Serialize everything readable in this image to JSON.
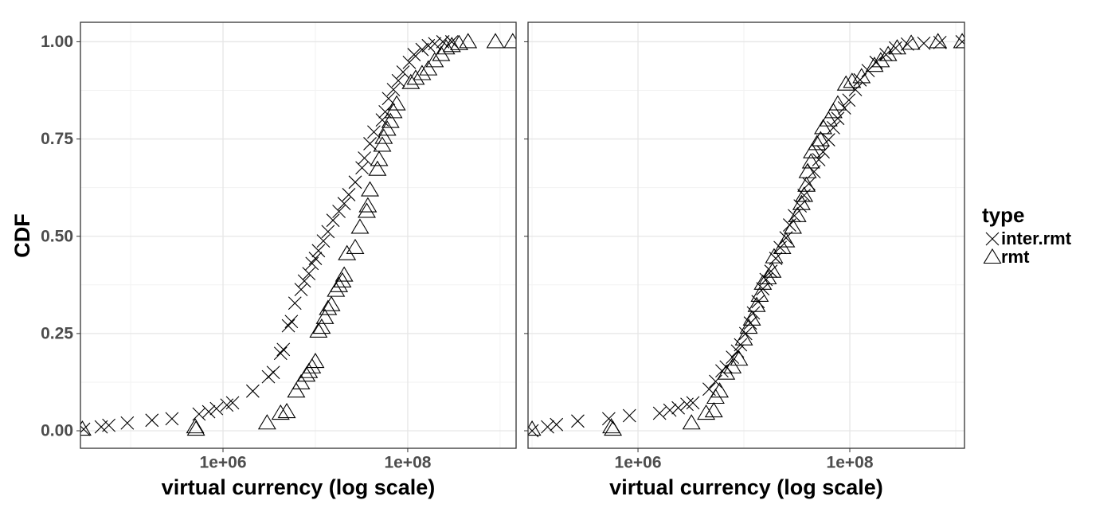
{
  "chart_data": [
    {
      "type": "scatter",
      "ylabel": "CDF",
      "xlabel": "virtual currency (log scale)",
      "xlog": true,
      "grid": true,
      "legend_title": "type",
      "xlim": [
        28600,
        1490000000
      ],
      "ylim": [
        -0.045,
        1.05
      ],
      "xticks": [
        {
          "value": 1000000,
          "label": "1e+06"
        },
        {
          "value": 100000000,
          "label": "1e+08"
        }
      ],
      "minor_xticks": [
        100000,
        10000000,
        1000000000
      ],
      "yticks": [
        {
          "value": 0,
          "label": "0.00"
        },
        {
          "value": 0.25,
          "label": "0.25"
        },
        {
          "value": 0.5,
          "label": "0.50"
        },
        {
          "value": 0.75,
          "label": "0.75"
        },
        {
          "value": 1,
          "label": "1.00"
        }
      ],
      "minor_yticks": [
        0.125,
        0.375,
        0.625,
        0.875
      ],
      "series": [
        {
          "name": "inter.rmt",
          "marker": "x",
          "color": "#000000",
          "x": [
            31000.0,
            48000.0,
            58000.0,
            92000.0,
            170000.0,
            280000.0,
            550000.0,
            700000.0,
            850000.0,
            1100000.0,
            1270000.0,
            2100000.0,
            3100000.0,
            3500000.0,
            4200000.0,
            4500000.0,
            5100000.0,
            5500000.0,
            6000000.0,
            7000000.0,
            7600000.0,
            8500000.0,
            9200000.0,
            10000000.0,
            10800000.0,
            12200000.0,
            13700000.0,
            15500000.0,
            18000000.0,
            20500000.0,
            23000000.0,
            27000000.0,
            32000000.0,
            34000000.0,
            39000000.0,
            43000000.0,
            53000000.0,
            57000000.0,
            62000000.0,
            70000000.0,
            79000000.0,
            89000000.0,
            104000000.0,
            117000000.0,
            143000000.0,
            167000000.0,
            196000000.0,
            240000000.0,
            300000000.0
          ],
          "values": [
            0.004,
            0.01,
            0.014,
            0.02,
            0.027,
            0.031,
            0.043,
            0.049,
            0.057,
            0.066,
            0.072,
            0.102,
            0.139,
            0.15,
            0.199,
            0.209,
            0.27,
            0.281,
            0.328,
            0.363,
            0.385,
            0.404,
            0.43,
            0.443,
            0.463,
            0.488,
            0.512,
            0.541,
            0.564,
            0.584,
            0.607,
            0.639,
            0.676,
            0.701,
            0.738,
            0.768,
            0.799,
            0.82,
            0.854,
            0.877,
            0.9,
            0.922,
            0.947,
            0.967,
            0.98,
            0.99,
            0.995,
            1.0,
            1.0
          ]
        },
        {
          "name": "rmt",
          "marker": "triangle",
          "color": "#000000",
          "x": [
            30000.0,
            500000.0,
            510000.0,
            3000000.0,
            4200000.0,
            4900000.0,
            6200000.0,
            7000000.0,
            8000000.0,
            8500000.0,
            9200000.0,
            10000000.0,
            10800000.0,
            11700000.0,
            12700000.0,
            13700000.0,
            14900000.0,
            16700000.0,
            18000000.0,
            19600000.0,
            20500000.0,
            22000000.0,
            27000000.0,
            30400000.0,
            36000000.0,
            37000000.0,
            39000000.0,
            47000000.0,
            49000000.0,
            53000000.0,
            55000000.0,
            60000000.0,
            65000000.0,
            70000000.0,
            76000000.0,
            108000000.0,
            122000000.0,
            143000000.0,
            167000000.0,
            196000000.0,
            230000000.0,
            260000000.0,
            300000000.0,
            360000000.0,
            450000000.0,
            890000000.0,
            1370000000.0
          ],
          "values": [
            0.004,
            0.01,
            0.004,
            0.02,
            0.045,
            0.049,
            0.102,
            0.123,
            0.143,
            0.152,
            0.164,
            0.178,
            0.256,
            0.266,
            0.291,
            0.314,
            0.324,
            0.361,
            0.373,
            0.385,
            0.4,
            0.455,
            0.471,
            0.523,
            0.564,
            0.578,
            0.619,
            0.672,
            0.697,
            0.734,
            0.754,
            0.775,
            0.795,
            0.82,
            0.84,
            0.895,
            0.906,
            0.918,
            0.93,
            0.951,
            0.967,
            0.984,
            0.99,
            0.995,
            1.0,
            1.0,
            1.0
          ]
        }
      ]
    },
    {
      "type": "scatter",
      "xlabel": "virtual currency (log scale)",
      "xlog": true,
      "grid": true,
      "xlim": [
        91600,
        1210000000
      ],
      "ylim": [
        -0.045,
        1.05
      ],
      "xticks": [
        {
          "value": 1000000,
          "label": "1e+06"
        },
        {
          "value": 100000000,
          "label": "1e+08"
        }
      ],
      "minor_xticks": [
        100000,
        10000000,
        1000000000
      ],
      "yticks": [
        0,
        0.25,
        0.5,
        0.75,
        1
      ],
      "minor_yticks": [
        0.125,
        0.375,
        0.625,
        0.875
      ],
      "series": [
        {
          "name": "inter.rmt",
          "marker": "x",
          "color": "#000000",
          "x": [
            100000.0,
            140000.0,
            170000.0,
            270000.0,
            530000.0,
            830000.0,
            1600000.0,
            2000000.0,
            2400000.0,
            2900000.0,
            3300000.0,
            4700000.0,
            5400000.0,
            6200000.0,
            6800000.0,
            7800000.0,
            8700000.0,
            9300000.0,
            10400000.0,
            11500000.0,
            12300000.0,
            13600000.0,
            15100000.0,
            16200000.0,
            18000000.0,
            20000000.0,
            22000000.0,
            25000000.0,
            27000000.0,
            30000000.0,
            34000000.0,
            37000000.0,
            41000000.0,
            46000000.0,
            51000000.0,
            56000000.0,
            63000000.0,
            70000000.0,
            77000000.0,
            89000000.0,
            98000000.0,
            113000000.0,
            125000000.0,
            149000000.0,
            177000000.0,
            220000000.0,
            270000000.0,
            350000000.0,
            500000000.0,
            710000000.0,
            1150000000.0
          ],
          "values": [
            0,
            0.01,
            0.016,
            0.025,
            0.031,
            0.039,
            0.045,
            0.053,
            0.059,
            0.068,
            0.072,
            0.107,
            0.127,
            0.154,
            0.164,
            0.189,
            0.205,
            0.221,
            0.25,
            0.277,
            0.303,
            0.332,
            0.365,
            0.389,
            0.41,
            0.443,
            0.471,
            0.496,
            0.529,
            0.553,
            0.578,
            0.605,
            0.635,
            0.666,
            0.697,
            0.717,
            0.748,
            0.779,
            0.803,
            0.83,
            0.85,
            0.877,
            0.902,
            0.926,
            0.947,
            0.967,
            0.984,
            0.994,
            0.996,
            0.998,
            1.0
          ]
        },
        {
          "name": "rmt",
          "marker": "triangle",
          "color": "#000000",
          "x": [
            100000.0,
            560000.0,
            580000.0,
            3200000.0,
            4400000.0,
            5200000.0,
            5400000.0,
            5900000.0,
            6800000.0,
            7800000.0,
            9000000.0,
            10000000.0,
            11100000.0,
            11900000.0,
            13200000.0,
            14100000.0,
            15100000.0,
            16800000.0,
            18600000.0,
            19300000.0,
            23000000.0,
            25000000.0,
            29000000.0,
            32000000.0,
            35000000.0,
            37000000.0,
            39000000.0,
            40000000.0,
            43000000.0,
            44000000.0,
            49000000.0,
            53000000.0,
            56000000.0,
            63000000.0,
            70000000.0,
            77000000.0,
            92000000.0,
            105000000.0,
            129000000.0,
            171000000.0,
            196000000.0,
            230000000.0,
            280000000.0,
            380000000.0,
            680000000.0,
            1150000000.0
          ],
          "values": [
            0.004,
            0.01,
            0.004,
            0.02,
            0.045,
            0.051,
            0.086,
            0.102,
            0.148,
            0.164,
            0.184,
            0.236,
            0.266,
            0.287,
            0.322,
            0.348,
            0.379,
            0.393,
            0.41,
            0.447,
            0.471,
            0.488,
            0.523,
            0.553,
            0.584,
            0.605,
            0.631,
            0.666,
            0.691,
            0.717,
            0.738,
            0.748,
            0.779,
            0.799,
            0.82,
            0.84,
            0.891,
            0.898,
            0.91,
            0.939,
            0.951,
            0.967,
            0.984,
            0.996,
            1.0,
            1.0
          ]
        }
      ]
    }
  ]
}
